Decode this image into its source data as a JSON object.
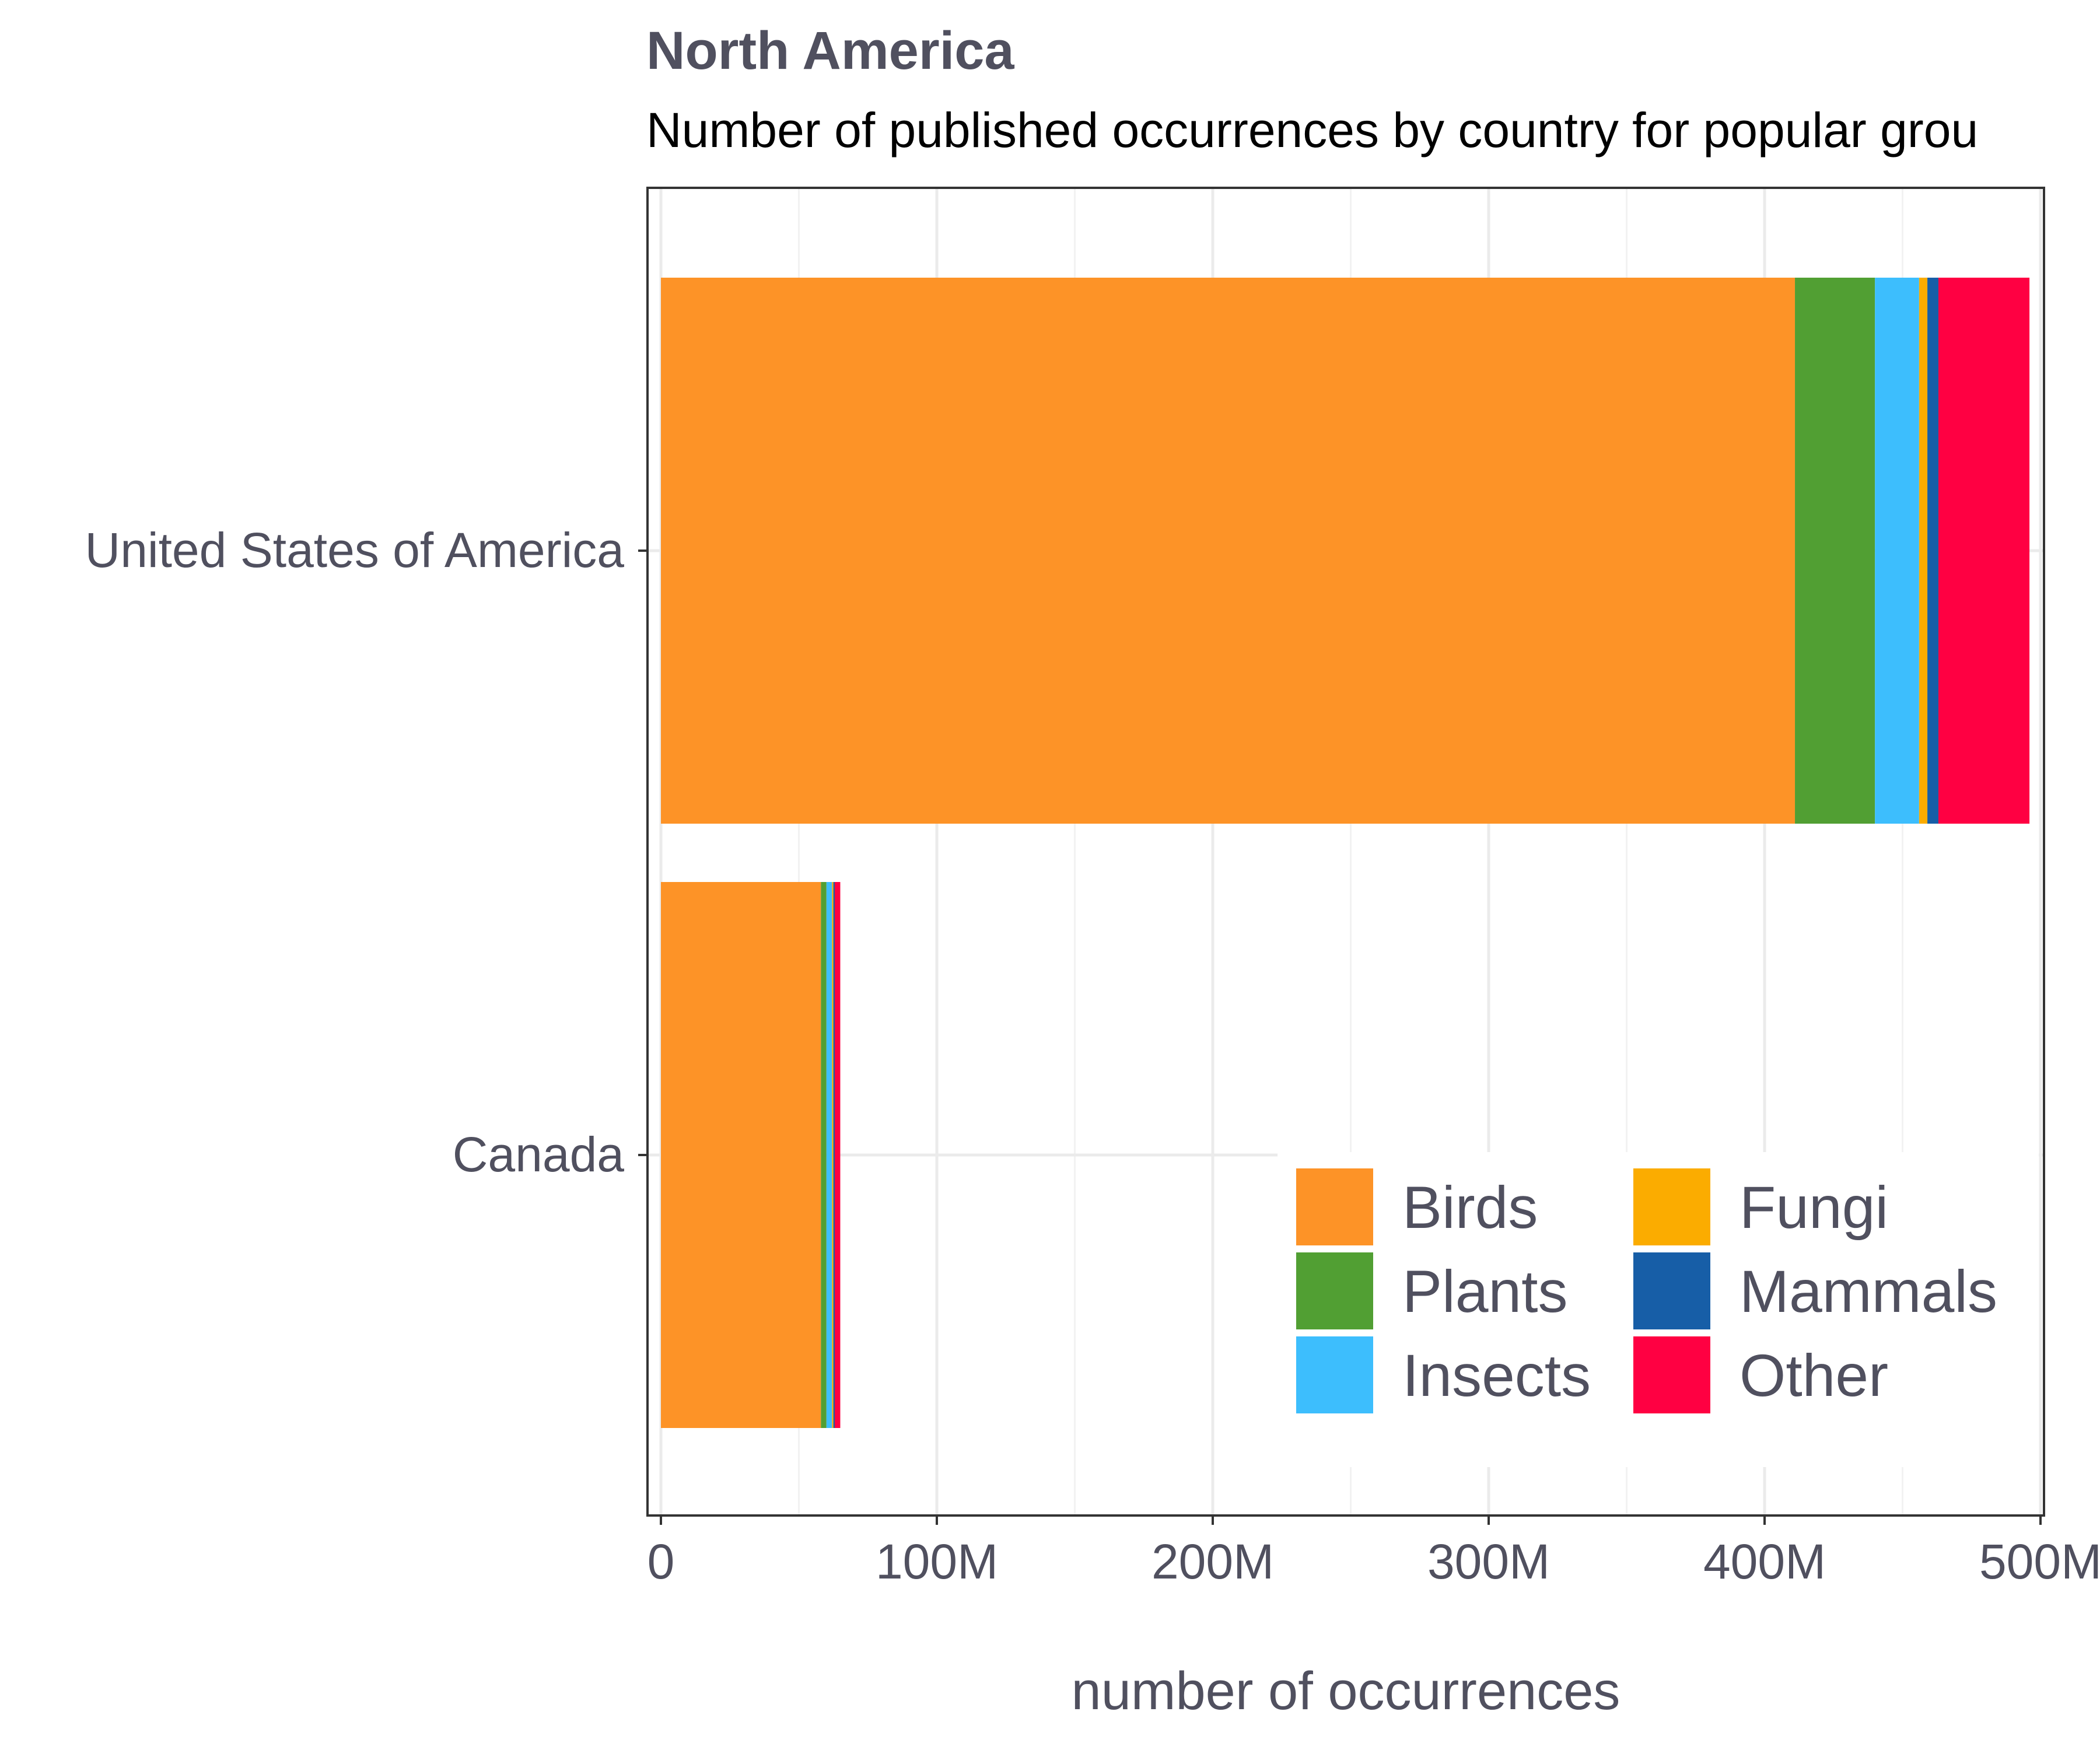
{
  "chart_data": {
    "type": "bar",
    "orientation": "horizontal",
    "stacked": true,
    "title": "North America",
    "subtitle": "Number of published occurrences by country for popular grou",
    "xlabel": "number of occurrences",
    "ylabel": "",
    "xlim": [
      0,
      500000000
    ],
    "x_ticks": [
      0,
      100000000,
      200000000,
      300000000,
      400000000,
      500000000
    ],
    "x_tick_labels": [
      "0",
      "100M",
      "200M",
      "300M",
      "400M",
      "500M"
    ],
    "categories": [
      "United States of America",
      "Canada"
    ],
    "series": [
      {
        "name": "Birds",
        "color": "#fd9327",
        "values": [
          411000000,
          58000000
        ]
      },
      {
        "name": "Plants",
        "color": "#519f33",
        "values": [
          29000000,
          2000000
        ]
      },
      {
        "name": "Insects",
        "color": "#3dbefd",
        "values": [
          16000000,
          2000000
        ]
      },
      {
        "name": "Fungi",
        "color": "#fbac00",
        "values": [
          3000000,
          500000
        ]
      },
      {
        "name": "Mammals",
        "color": "#175ea7",
        "values": [
          4000000,
          500000
        ]
      },
      {
        "name": "Other",
        "color": "#ff0042",
        "values": [
          33000000,
          2000000
        ]
      }
    ],
    "grid": true,
    "legend": {
      "position": "bottom-right",
      "columns": 2
    }
  }
}
